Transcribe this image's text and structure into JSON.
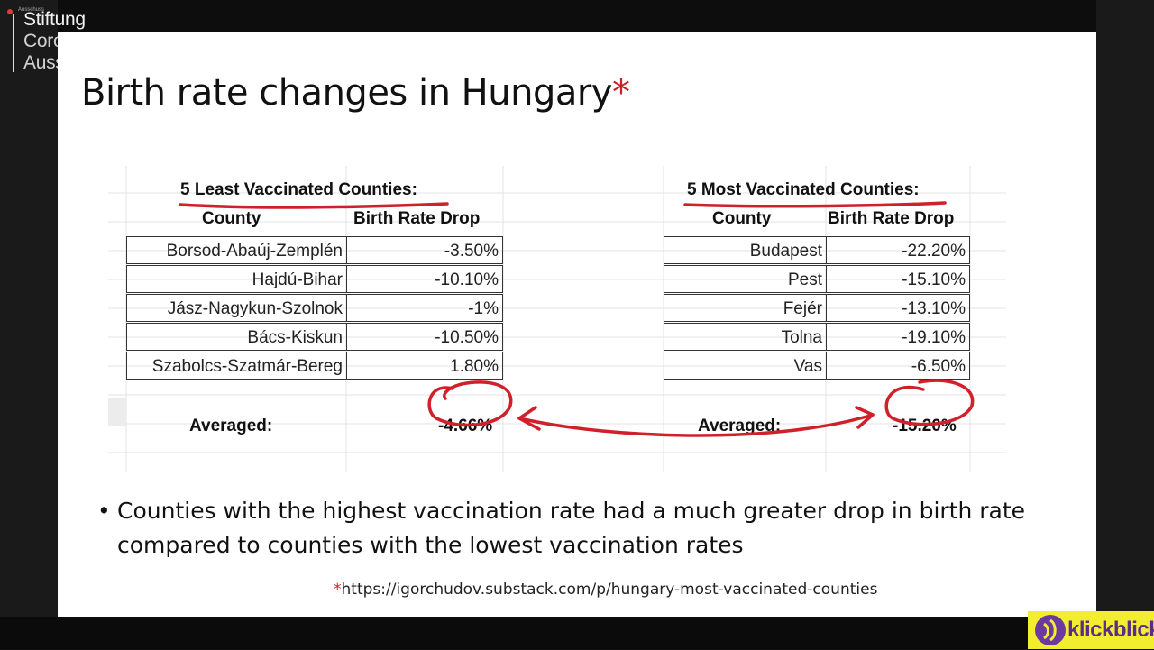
{
  "overlay": {
    "logo_lines": [
      "Stiftung",
      "Corona",
      "Ausschuss"
    ],
    "logo_small": "Ausschuss"
  },
  "slide": {
    "title": "Birth rate changes in Hungary",
    "title_star": "*",
    "bullet": "Counties with the highest vaccination rate had a much greater drop in birth rate compared to counties with the lowest vaccination rates",
    "source_star": "*",
    "source_url": "https://igorchudov.substack.com/p/hungary-most-vaccinated-counties"
  },
  "tables": {
    "least": {
      "header": "5 Least Vaccinated Counties:",
      "col_county": "County",
      "col_drop": "Birth Rate Drop",
      "rows": [
        {
          "county": "Borsod-Abaúj-Zemplén",
          "drop": "-3.50%"
        },
        {
          "county": "Hajdú-Bihar",
          "drop": "-10.10%"
        },
        {
          "county": "Jász-Nagykun-Szolnok",
          "drop": "-1%"
        },
        {
          "county": "Bács-Kiskun",
          "drop": "-10.50%"
        },
        {
          "county": "Szabolcs-Szatmár-Bereg",
          "drop": "1.80%"
        }
      ],
      "avg_label": "Averaged:",
      "avg_value": "-4.66%"
    },
    "most": {
      "header": "5 Most Vaccinated Counties:",
      "col_county": "County",
      "col_drop": "Birth Rate Drop",
      "rows": [
        {
          "county": "Budapest",
          "drop": "-22.20%"
        },
        {
          "county": "Pest",
          "drop": "-15.10%"
        },
        {
          "county": "Fejér",
          "drop": "-13.10%"
        },
        {
          "county": "Tolna",
          "drop": "-19.10%"
        },
        {
          "county": "Vas",
          "drop": "-6.50%"
        }
      ],
      "avg_label": "Averaged:",
      "avg_value": "-15.20%"
    }
  },
  "brand": {
    "name": "klickblick"
  },
  "colors": {
    "annotation_red": "#d0202a",
    "brand_yellow": "#f2ee2f",
    "brand_purple": "#6b3aa0"
  }
}
